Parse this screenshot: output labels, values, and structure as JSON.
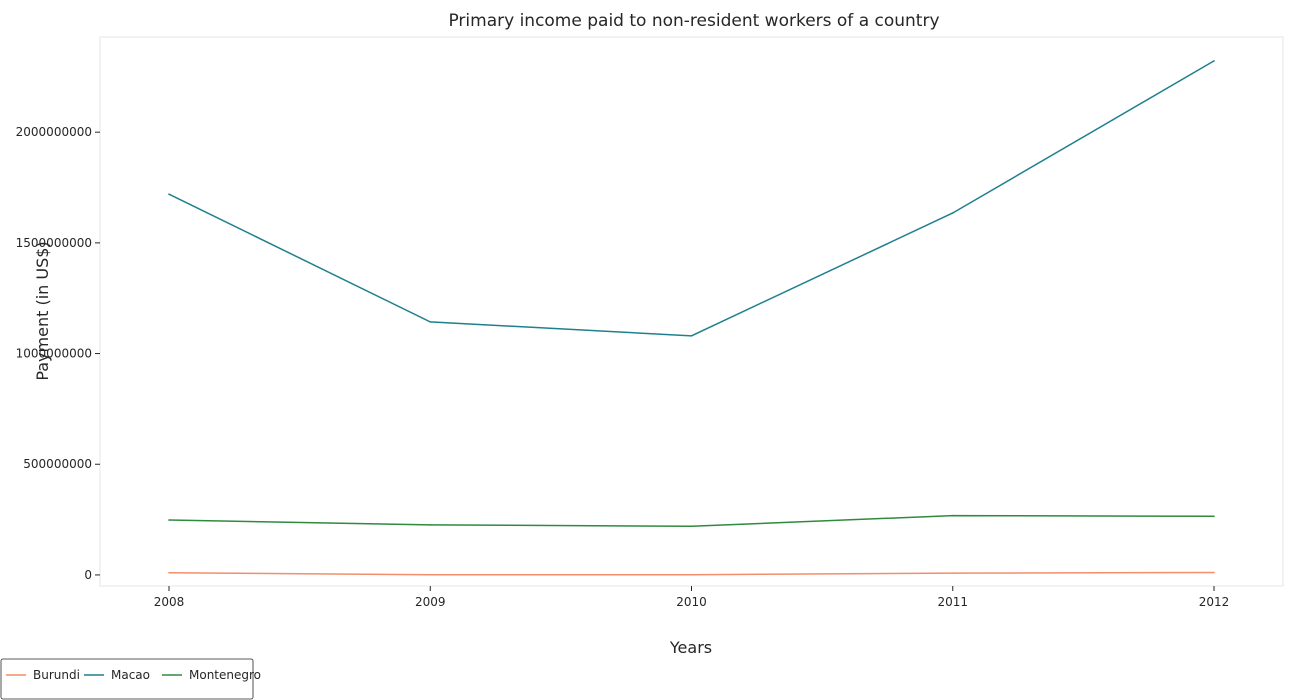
{
  "chart_data": {
    "type": "line",
    "title": "Primary income paid to non-resident workers of a country",
    "xlabel": "Years",
    "ylabel": "Payment (in US$)",
    "categories": [
      "2008",
      "2009",
      "2010",
      "2011",
      "2012"
    ],
    "ylim": [
      -50000000,
      2430000000
    ],
    "yticks": [
      0,
      500000000,
      1000000000,
      1500000000,
      2000000000
    ],
    "ytick_labels": [
      "0",
      "500000000",
      "1000000000",
      "1500000000",
      "2000000000"
    ],
    "grid": false,
    "legend_position": "bottom-left",
    "series": [
      {
        "name": "Burundi",
        "color": "#f28e6b",
        "values": [
          10000000,
          1000000,
          1000000,
          8000000,
          11000000
        ]
      },
      {
        "name": "Macao",
        "color": "#1f7f8f",
        "values": [
          1720000000,
          1143000000,
          1080000000,
          1635000000,
          2322000000
        ]
      },
      {
        "name": "Montenegro",
        "color": "#2f8a3f",
        "values": [
          248000000,
          226000000,
          220000000,
          268000000,
          265000000
        ]
      }
    ]
  }
}
